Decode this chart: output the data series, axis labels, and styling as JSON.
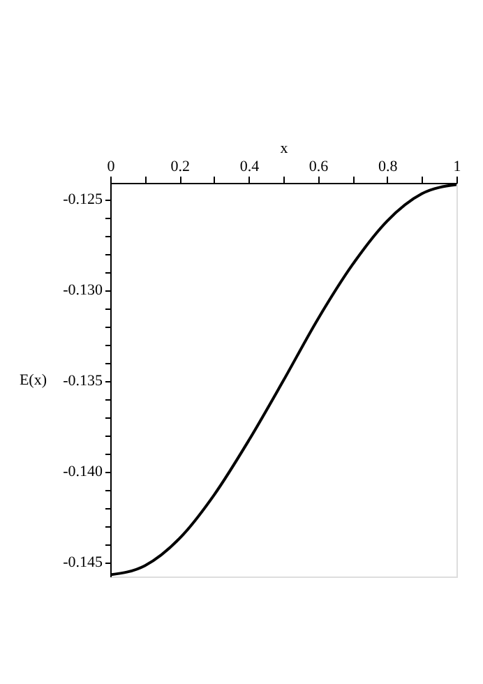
{
  "chart_data": {
    "type": "line",
    "xlabel": "x",
    "ylabel": "E(x)",
    "x": [
      0,
      0.1,
      0.2,
      0.3,
      0.4,
      0.5,
      0.6,
      0.7,
      0.8,
      0.9,
      1
    ],
    "series": [
      {
        "color": "#000000",
        "values": [
          -0.1457,
          -0.1452,
          -0.1437,
          -0.1413,
          -0.1383,
          -0.135,
          -0.1316,
          -0.1286,
          -0.1262,
          -0.1247,
          -0.1242
        ]
      }
    ],
    "xlim": [
      0,
      1
    ],
    "ylim": [
      -0.1458,
      -0.1241
    ],
    "xticks": [
      0,
      {
        "value": 0.1,
        "label": null
      },
      0.2,
      {
        "value": 0.3,
        "label": null
      },
      0.4,
      {
        "value": 0.5,
        "label": null
      },
      0.6,
      {
        "value": 0.7,
        "label": null
      },
      0.8,
      {
        "value": 0.9,
        "label": null
      },
      1
    ],
    "yticks": [
      {
        "value": -0.125,
        "label": "-0.125"
      },
      {
        "value": -0.126,
        "label": null
      },
      {
        "value": -0.127,
        "label": null
      },
      {
        "value": -0.128,
        "label": null
      },
      {
        "value": -0.129,
        "label": null
      },
      {
        "value": -0.13,
        "label": "-0.130"
      },
      {
        "value": -0.131,
        "label": null
      },
      {
        "value": -0.132,
        "label": null
      },
      {
        "value": -0.133,
        "label": null
      },
      {
        "value": -0.134,
        "label": null
      },
      {
        "value": -0.135,
        "label": "-0.135"
      },
      {
        "value": -0.136,
        "label": null
      },
      {
        "value": -0.137,
        "label": null
      },
      {
        "value": -0.138,
        "label": null
      },
      {
        "value": -0.139,
        "label": null
      },
      {
        "value": -0.14,
        "label": "-0.140"
      },
      {
        "value": -0.141,
        "label": null
      },
      {
        "value": -0.142,
        "label": null
      },
      {
        "value": -0.143,
        "label": null
      },
      {
        "value": -0.144,
        "label": null
      },
      {
        "value": -0.145,
        "label": "-0.145"
      }
    ],
    "grid": false,
    "legend": false,
    "marker": "none",
    "line_style": "solid"
  }
}
